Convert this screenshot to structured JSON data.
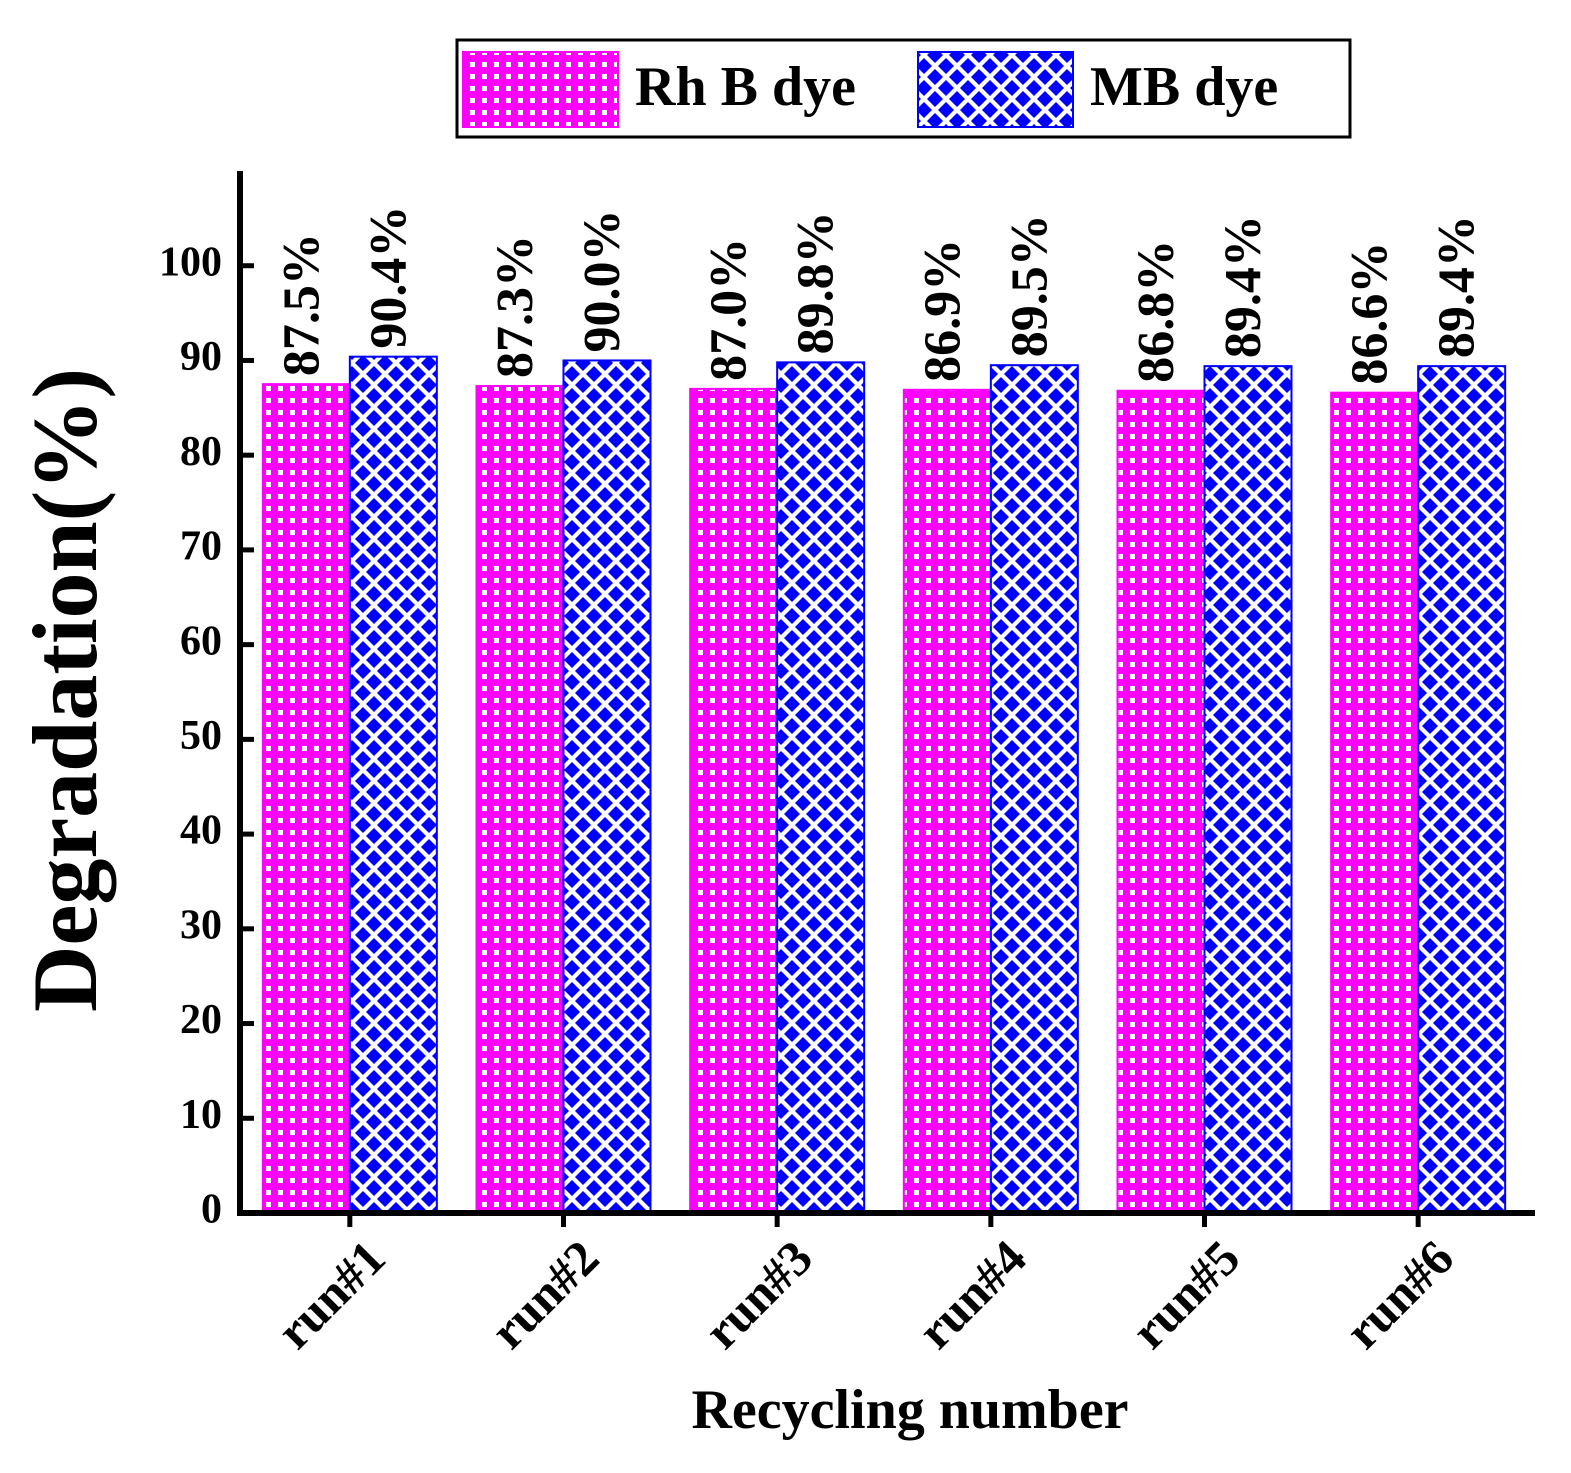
{
  "chart_data": {
    "type": "bar",
    "y_label": "Degradation(%)",
    "x_label": "Recycling number",
    "categories": [
      "run#1",
      "run#2",
      "run#3",
      "run#4",
      "run#5",
      "run#6"
    ],
    "series": [
      {
        "name": "Rh B dye",
        "color": "#ff00ff",
        "values": [
          87.5,
          87.3,
          87.0,
          86.9,
          86.8,
          86.6
        ],
        "value_labels": [
          "87.5%",
          "87.3%",
          "87.0%",
          "86.9%",
          "86.8%",
          "86.6%"
        ]
      },
      {
        "name": "MB dye",
        "color": "#0000ff",
        "values": [
          90.4,
          90.0,
          89.8,
          89.5,
          89.4,
          89.4
        ],
        "value_labels": [
          "90.4%",
          "90.0%",
          "89.8%",
          "89.5%",
          "89.4%",
          "89.4%"
        ]
      }
    ],
    "ylim": [
      0,
      110
    ],
    "yticks": [
      0,
      10,
      20,
      30,
      40,
      50,
      60,
      70,
      80,
      90,
      100
    ],
    "legend": "top"
  }
}
